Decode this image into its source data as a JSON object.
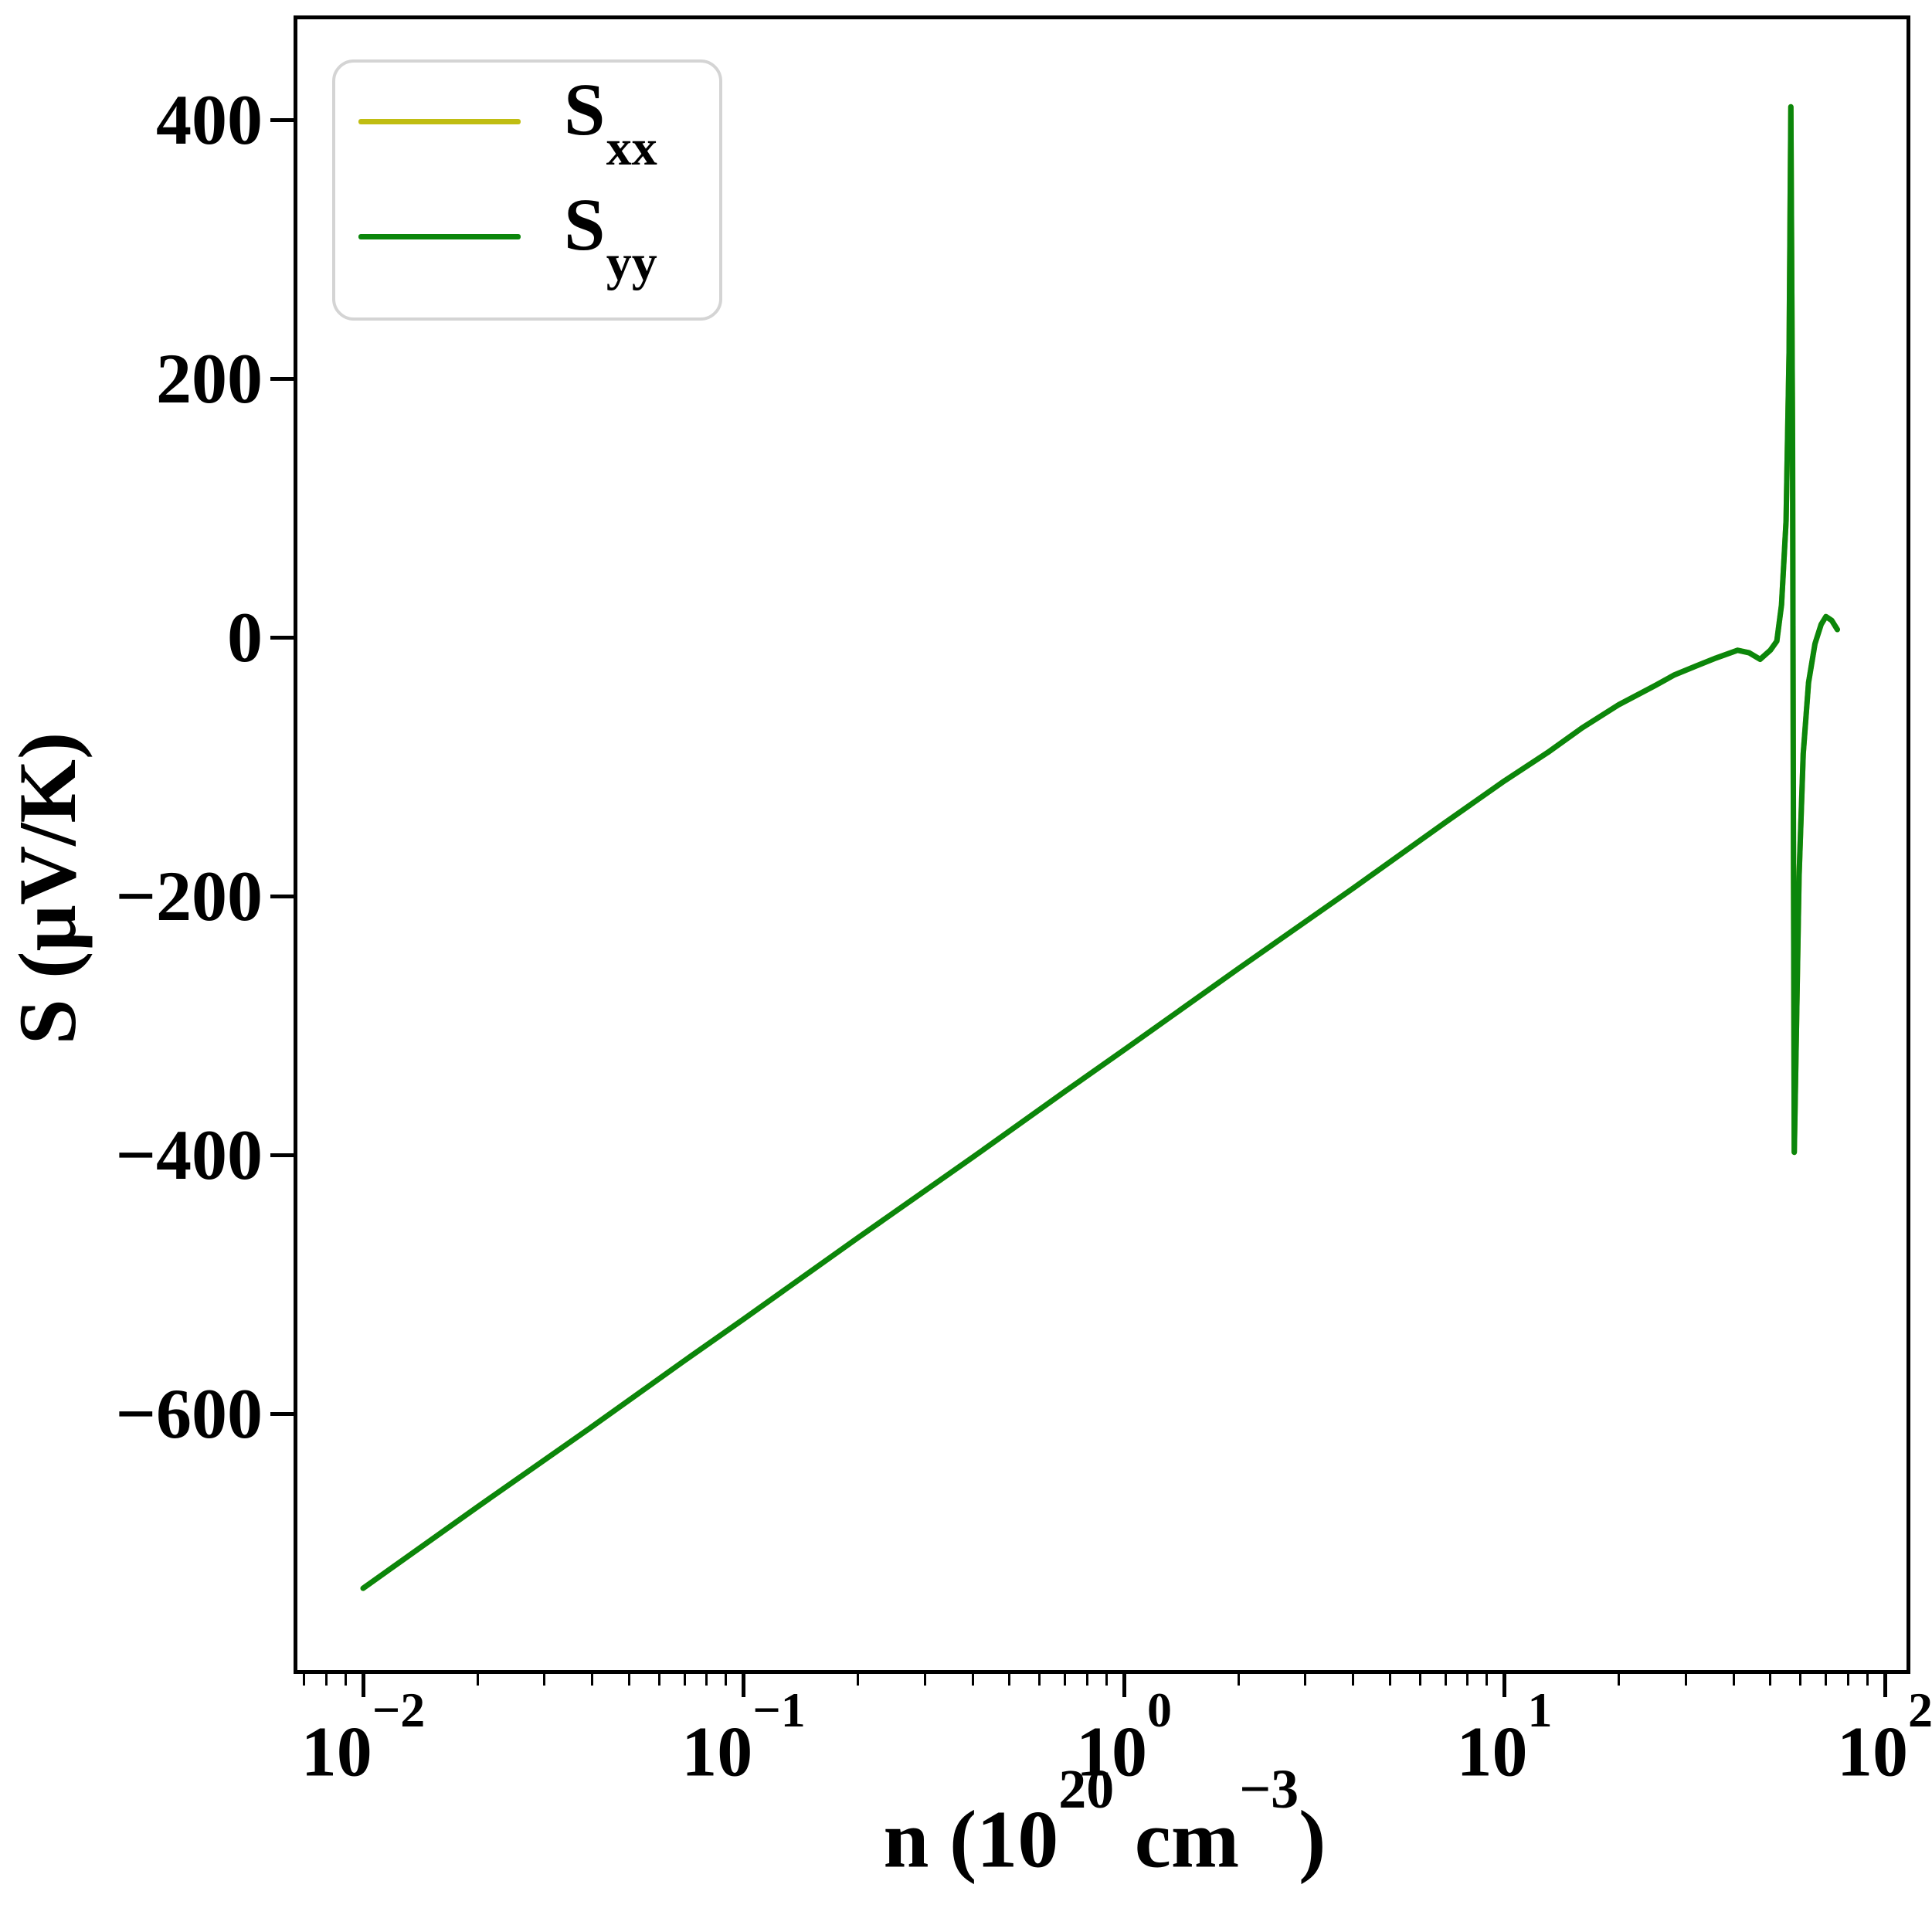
{
  "figure": {
    "background": "#ffffff",
    "frame_color": "#000000",
    "xlabel": {
      "parts": {
        "p0": "n (10",
        "sup1": "20",
        "p1": " cm",
        "sup2": "−3",
        "p2": ")"
      }
    },
    "ylabel": "S (μV/K)"
  },
  "legend": {
    "border_color": "#d4d4d4",
    "entries": [
      {
        "base": "S",
        "sub": "xx"
      },
      {
        "base": "S",
        "sub": "yy"
      }
    ]
  },
  "axes": {
    "y": {
      "ticks": [
        {
          "value": 400,
          "label": "400"
        },
        {
          "value": 200,
          "label": "200"
        },
        {
          "value": 0,
          "label": "0"
        },
        {
          "value": -200,
          "label": "−200"
        },
        {
          "value": -400,
          "label": "−400"
        },
        {
          "value": -600,
          "label": "−600"
        }
      ]
    },
    "x": {
      "tick_base": "10",
      "ticks": [
        {
          "value": 0.01,
          "exp": "−2"
        },
        {
          "value": 0.1,
          "exp": "−1"
        },
        {
          "value": 1,
          "exp": "0"
        },
        {
          "value": 10,
          "exp": "1"
        },
        {
          "value": 100,
          "exp": "2"
        }
      ]
    }
  },
  "chart_data": {
    "type": "line",
    "xscale": "log",
    "title": "",
    "xlabel": "n (10^20 cm^-3)",
    "ylabel": "S (uV/K)",
    "xlim": [
      0.0066,
      117
    ],
    "ylim": [
      -790,
      475
    ],
    "grid": false,
    "legend_position": "upper left",
    "series": [
      {
        "name": "S_xx",
        "name_id": "sxx",
        "color": "#c0bd12",
        "points": [
          [
            0.01,
            -735
          ],
          [
            0.02,
            -672
          ],
          [
            0.04,
            -610
          ],
          [
            0.07,
            -559
          ],
          [
            0.1,
            -527
          ],
          [
            0.2,
            -464
          ],
          [
            0.4,
            -402
          ],
          [
            0.7,
            -351
          ],
          [
            1,
            -319
          ],
          [
            2,
            -256
          ],
          [
            4,
            -194
          ],
          [
            7,
            -143
          ],
          [
            10,
            -111
          ],
          [
            13,
            -89
          ],
          [
            16,
            -70
          ],
          [
            20,
            -52
          ],
          [
            25,
            -37
          ],
          [
            28,
            -29
          ],
          [
            32,
            -22
          ],
          [
            36,
            -16
          ],
          [
            41,
            -10
          ],
          [
            44,
            -12
          ],
          [
            47,
            -17
          ],
          [
            50,
            -10
          ],
          [
            52,
            -3
          ],
          [
            53.5,
            25
          ],
          [
            55,
            90
          ],
          [
            56,
            220
          ],
          [
            56.6,
            410
          ],
          [
            57.2,
            150
          ],
          [
            57.5,
            -150
          ],
          [
            57.8,
            -398
          ],
          [
            58.5,
            -310
          ],
          [
            59.5,
            -185
          ],
          [
            61,
            -90
          ],
          [
            63,
            -35
          ],
          [
            65.5,
            -5
          ],
          [
            68,
            10
          ],
          [
            70,
            16
          ],
          [
            72.5,
            13
          ],
          [
            75,
            6
          ]
        ]
      },
      {
        "name": "S_yy",
        "name_id": "syy",
        "color": "#0b860b",
        "points": [
          [
            0.01,
            -735
          ],
          [
            0.02,
            -672
          ],
          [
            0.04,
            -610
          ],
          [
            0.07,
            -559
          ],
          [
            0.1,
            -527
          ],
          [
            0.2,
            -464
          ],
          [
            0.4,
            -402
          ],
          [
            0.7,
            -351
          ],
          [
            1,
            -319
          ],
          [
            2,
            -256
          ],
          [
            4,
            -194
          ],
          [
            7,
            -143
          ],
          [
            10,
            -111
          ],
          [
            13,
            -89
          ],
          [
            16,
            -70
          ],
          [
            20,
            -52
          ],
          [
            25,
            -37
          ],
          [
            28,
            -29
          ],
          [
            32,
            -22
          ],
          [
            36,
            -16
          ],
          [
            41,
            -10
          ],
          [
            44,
            -12
          ],
          [
            47,
            -17
          ],
          [
            50,
            -10
          ],
          [
            52,
            -3
          ],
          [
            53.5,
            25
          ],
          [
            55,
            90
          ],
          [
            56,
            220
          ],
          [
            56.6,
            410
          ],
          [
            57.2,
            150
          ],
          [
            57.5,
            -150
          ],
          [
            57.8,
            -398
          ],
          [
            58.5,
            -310
          ],
          [
            59.5,
            -185
          ],
          [
            61,
            -90
          ],
          [
            63,
            -35
          ],
          [
            65.5,
            -5
          ],
          [
            68,
            10
          ],
          [
            70,
            16
          ],
          [
            72.5,
            13
          ],
          [
            75,
            6
          ]
        ]
      }
    ]
  }
}
